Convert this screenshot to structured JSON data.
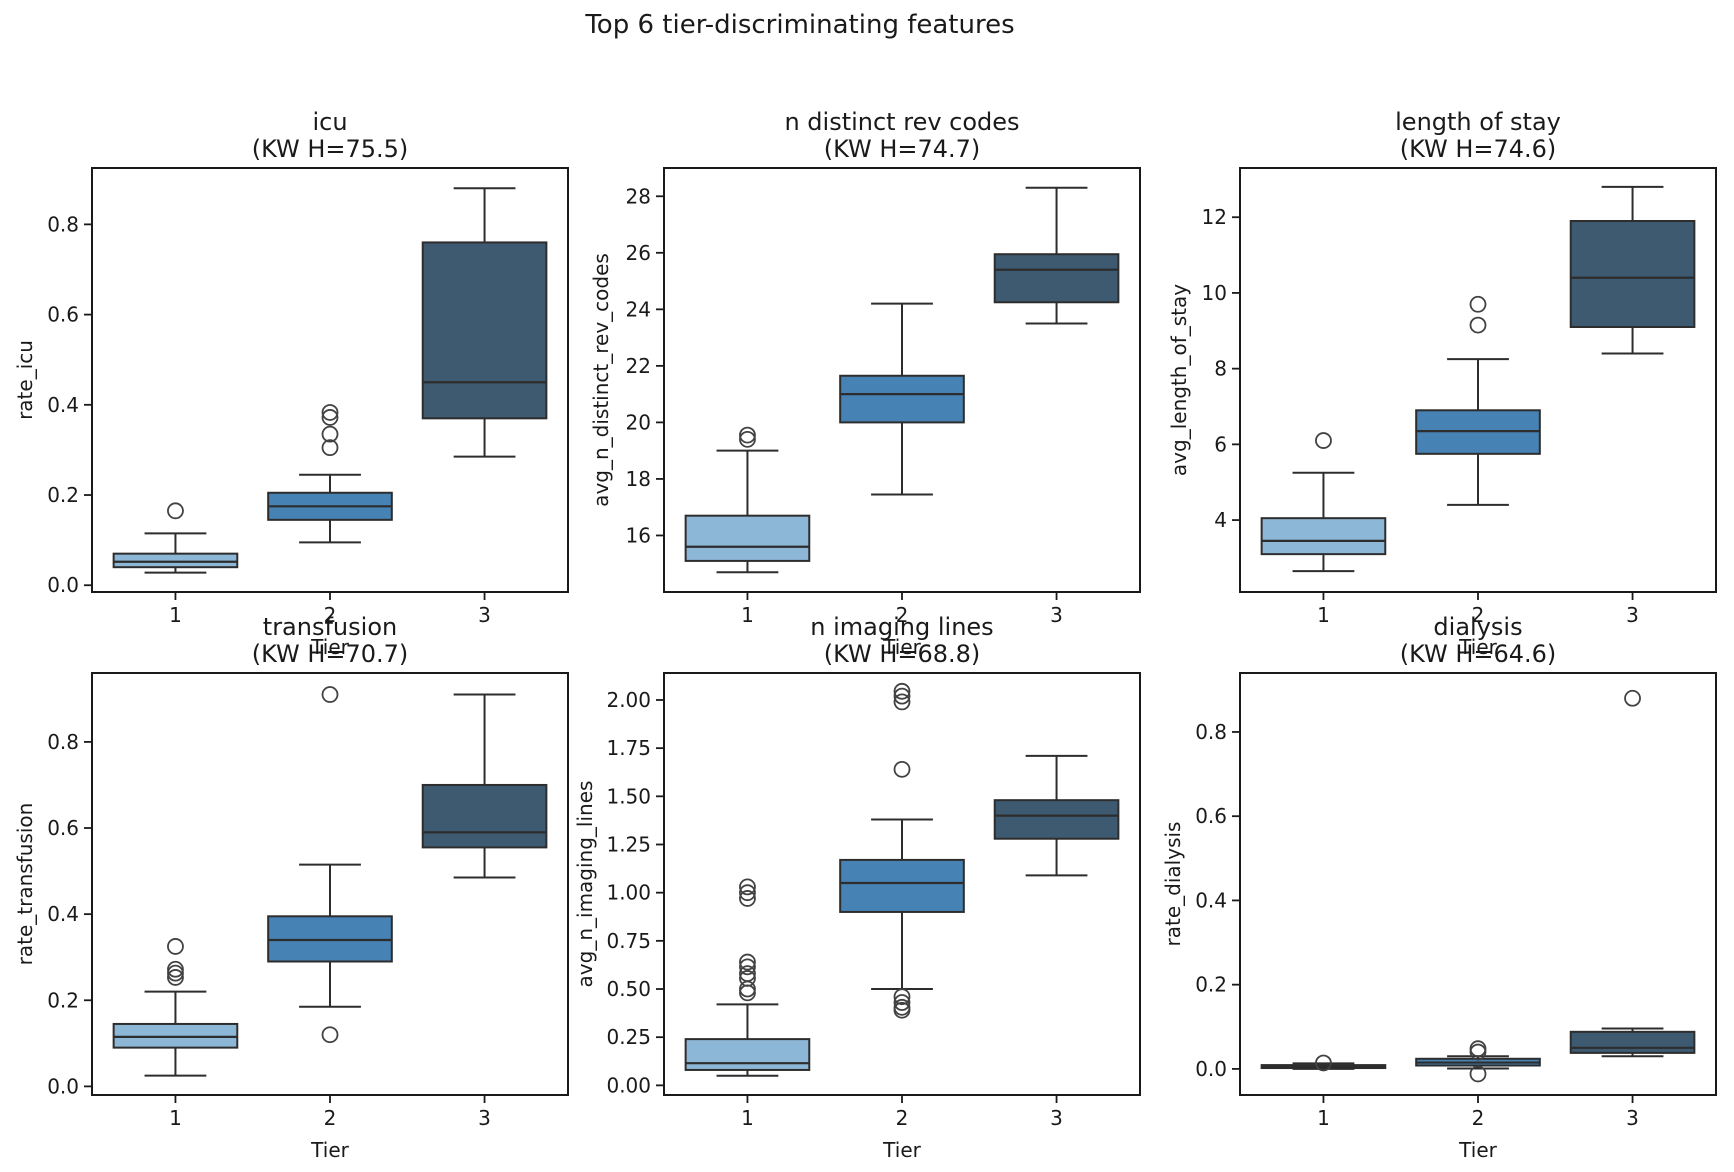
{
  "figure": {
    "suptitle": "Top 6 tier-discriminating features",
    "xlabel": "Tier",
    "tiers": [
      "1",
      "2",
      "3"
    ]
  },
  "colors": {
    "box_fill_by_tier": [
      "#8db7d7",
      "#4682b4",
      "#3d5a70"
    ],
    "box_edge": "#2d2d2d",
    "median": "#2d2d2d",
    "flier_edge": "#424242",
    "spine": "#1a1a1a",
    "text": "#1a1a1a"
  },
  "chart_data": [
    {
      "type": "box",
      "title": "icu",
      "subtitle": "(KW H=75.5)",
      "kw_h": 75.5,
      "ylabel": "rate_icu",
      "xlabel": "Tier",
      "categories": [
        "1",
        "2",
        "3"
      ],
      "ylim": [
        -0.015,
        0.925
      ],
      "yticks": [
        {
          "v": 0.0,
          "label": "0.0"
        },
        {
          "v": 0.2,
          "label": "0.2"
        },
        {
          "v": 0.4,
          "label": "0.4"
        },
        {
          "v": 0.6,
          "label": "0.6"
        },
        {
          "v": 0.8,
          "label": "0.8"
        }
      ],
      "boxes": [
        {
          "tier": "1",
          "whislo": 0.028,
          "q1": 0.04,
          "med": 0.052,
          "q3": 0.07,
          "whishi": 0.115,
          "outliers": [
            0.165
          ]
        },
        {
          "tier": "2",
          "whislo": 0.095,
          "q1": 0.145,
          "med": 0.175,
          "q3": 0.205,
          "whishi": 0.245,
          "outliers": [
            0.305,
            0.335,
            0.372,
            0.383
          ]
        },
        {
          "tier": "3",
          "whislo": 0.285,
          "q1": 0.37,
          "med": 0.45,
          "q3": 0.76,
          "whishi": 0.88,
          "outliers": []
        }
      ]
    },
    {
      "type": "box",
      "title": "n distinct rev codes",
      "subtitle": "(KW H=74.7)",
      "kw_h": 74.7,
      "ylabel": "avg_n_distinct_rev_codes",
      "xlabel": "Tier",
      "categories": [
        "1",
        "2",
        "3"
      ],
      "ylim": [
        14.0,
        29.0
      ],
      "yticks": [
        {
          "v": 16,
          "label": "16"
        },
        {
          "v": 18,
          "label": "18"
        },
        {
          "v": 20,
          "label": "20"
        },
        {
          "v": 22,
          "label": "22"
        },
        {
          "v": 24,
          "label": "24"
        },
        {
          "v": 26,
          "label": "26"
        },
        {
          "v": 28,
          "label": "28"
        }
      ],
      "boxes": [
        {
          "tier": "1",
          "whislo": 14.7,
          "q1": 15.1,
          "med": 15.6,
          "q3": 16.7,
          "whishi": 19.0,
          "outliers": [
            19.4,
            19.55
          ]
        },
        {
          "tier": "2",
          "whislo": 17.45,
          "q1": 20.0,
          "med": 21.0,
          "q3": 21.65,
          "whishi": 24.2,
          "outliers": []
        },
        {
          "tier": "3",
          "whislo": 23.5,
          "q1": 24.25,
          "med": 25.4,
          "q3": 25.95,
          "whishi": 28.3,
          "outliers": []
        }
      ]
    },
    {
      "type": "box",
      "title": "length of stay",
      "subtitle": "(KW H=74.6)",
      "kw_h": 74.6,
      "ylabel": "avg_length_of_stay",
      "xlabel": "Tier",
      "categories": [
        "1",
        "2",
        "3"
      ],
      "ylim": [
        2.1,
        13.3
      ],
      "yticks": [
        {
          "v": 4,
          "label": "4"
        },
        {
          "v": 6,
          "label": "6"
        },
        {
          "v": 8,
          "label": "8"
        },
        {
          "v": 10,
          "label": "10"
        },
        {
          "v": 12,
          "label": "12"
        }
      ],
      "boxes": [
        {
          "tier": "1",
          "whislo": 2.65,
          "q1": 3.1,
          "med": 3.45,
          "q3": 4.05,
          "whishi": 5.25,
          "outliers": [
            6.1
          ]
        },
        {
          "tier": "2",
          "whislo": 4.4,
          "q1": 5.75,
          "med": 6.35,
          "q3": 6.9,
          "whishi": 8.25,
          "outliers": [
            9.15,
            9.7
          ]
        },
        {
          "tier": "3",
          "whislo": 8.4,
          "q1": 9.1,
          "med": 10.4,
          "q3": 11.9,
          "whishi": 12.8,
          "outliers": []
        }
      ]
    },
    {
      "type": "box",
      "title": "transfusion",
      "subtitle": "(KW H=70.7)",
      "kw_h": 70.7,
      "ylabel": "rate_transfusion",
      "xlabel": "Tier",
      "categories": [
        "1",
        "2",
        "3"
      ],
      "ylim": [
        -0.02,
        0.96
      ],
      "yticks": [
        {
          "v": 0.0,
          "label": "0.0"
        },
        {
          "v": 0.2,
          "label": "0.2"
        },
        {
          "v": 0.4,
          "label": "0.4"
        },
        {
          "v": 0.6,
          "label": "0.6"
        },
        {
          "v": 0.8,
          "label": "0.8"
        }
      ],
      "boxes": [
        {
          "tier": "1",
          "whislo": 0.025,
          "q1": 0.09,
          "med": 0.115,
          "q3": 0.145,
          "whishi": 0.22,
          "outliers": [
            0.253,
            0.263,
            0.272,
            0.325
          ]
        },
        {
          "tier": "2",
          "whislo": 0.185,
          "q1": 0.29,
          "med": 0.34,
          "q3": 0.395,
          "whishi": 0.515,
          "outliers": [
            0.12,
            0.91
          ]
        },
        {
          "tier": "3",
          "whislo": 0.485,
          "q1": 0.555,
          "med": 0.59,
          "q3": 0.7,
          "whishi": 0.91,
          "outliers": []
        }
      ]
    },
    {
      "type": "box",
      "title": "n imaging lines",
      "subtitle": "(KW H=68.8)",
      "kw_h": 68.8,
      "ylabel": "avg_n_imaging_lines",
      "xlabel": "Tier",
      "categories": [
        "1",
        "2",
        "3"
      ],
      "ylim": [
        -0.05,
        2.14
      ],
      "yticks": [
        {
          "v": 0.0,
          "label": "0.00"
        },
        {
          "v": 0.25,
          "label": "0.25"
        },
        {
          "v": 0.5,
          "label": "0.50"
        },
        {
          "v": 0.75,
          "label": "0.75"
        },
        {
          "v": 1.0,
          "label": "1.00"
        },
        {
          "v": 1.25,
          "label": "1.25"
        },
        {
          "v": 1.5,
          "label": "1.50"
        },
        {
          "v": 1.75,
          "label": "1.75"
        },
        {
          "v": 2.0,
          "label": "2.00"
        }
      ],
      "boxes": [
        {
          "tier": "1",
          "whislo": 0.05,
          "q1": 0.08,
          "med": 0.115,
          "q3": 0.24,
          "whishi": 0.42,
          "outliers": [
            0.48,
            0.5,
            0.555,
            0.58,
            0.615,
            0.64,
            0.97,
            1.0,
            1.03
          ]
        },
        {
          "tier": "2",
          "whislo": 0.5,
          "q1": 0.9,
          "med": 1.05,
          "q3": 1.17,
          "whishi": 1.38,
          "outliers": [
            0.39,
            0.405,
            0.43,
            0.46,
            1.64,
            1.99,
            2.02,
            2.045
          ]
        },
        {
          "tier": "3",
          "whislo": 1.09,
          "q1": 1.28,
          "med": 1.4,
          "q3": 1.48,
          "whishi": 1.71,
          "outliers": []
        }
      ]
    },
    {
      "type": "box",
      "title": "dialysis",
      "subtitle": "(KW H=64.6)",
      "kw_h": 64.6,
      "ylabel": "rate_dialysis",
      "xlabel": "Tier",
      "categories": [
        "1",
        "2",
        "3"
      ],
      "ylim": [
        -0.062,
        0.94
      ],
      "yticks": [
        {
          "v": 0.0,
          "label": "0.0"
        },
        {
          "v": 0.2,
          "label": "0.2"
        },
        {
          "v": 0.4,
          "label": "0.4"
        },
        {
          "v": 0.6,
          "label": "0.6"
        },
        {
          "v": 0.8,
          "label": "0.8"
        }
      ],
      "boxes": [
        {
          "tier": "1",
          "whislo": 0.0,
          "q1": 0.002,
          "med": 0.005,
          "q3": 0.009,
          "whishi": 0.013,
          "outliers": [
            0.014
          ]
        },
        {
          "tier": "2",
          "whislo": 0.001,
          "q1": 0.008,
          "med": 0.015,
          "q3": 0.024,
          "whishi": 0.03,
          "outliers": [
            0.048,
            0.04,
            -0.012
          ]
        },
        {
          "tier": "3",
          "whislo": 0.03,
          "q1": 0.038,
          "med": 0.05,
          "q3": 0.088,
          "whishi": 0.096,
          "outliers": [
            0.88
          ]
        }
      ]
    }
  ]
}
